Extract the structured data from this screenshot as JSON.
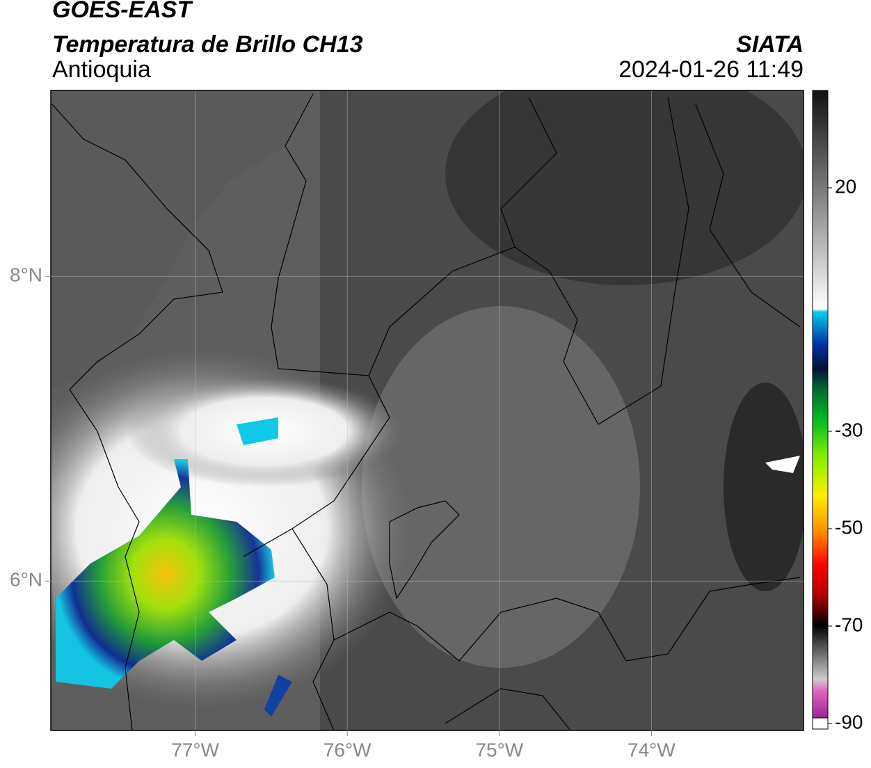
{
  "header": {
    "title": "GOES-EAST",
    "subtitle": "Temperatura de Brillo CH13",
    "region": "Antioquia",
    "source": "SIATA",
    "datetime": "2024-01-26 11:49"
  },
  "map": {
    "xlim": [
      -77.95,
      -73
    ],
    "ylim": [
      5.02,
      9.22
    ],
    "xticks": [
      {
        "value": -77,
        "label": "77°W"
      },
      {
        "value": -76,
        "label": "76°W"
      },
      {
        "value": -75,
        "label": "75°W"
      },
      {
        "value": -74,
        "label": "74°W"
      }
    ],
    "yticks": [
      {
        "value": 8,
        "label": "8°N"
      },
      {
        "value": 6,
        "label": "6°N"
      }
    ],
    "grid": true
  },
  "colorbar": {
    "lim": [
      -90,
      40
    ],
    "ticks": [
      20,
      -30,
      -50,
      -70,
      -90
    ]
  }
}
